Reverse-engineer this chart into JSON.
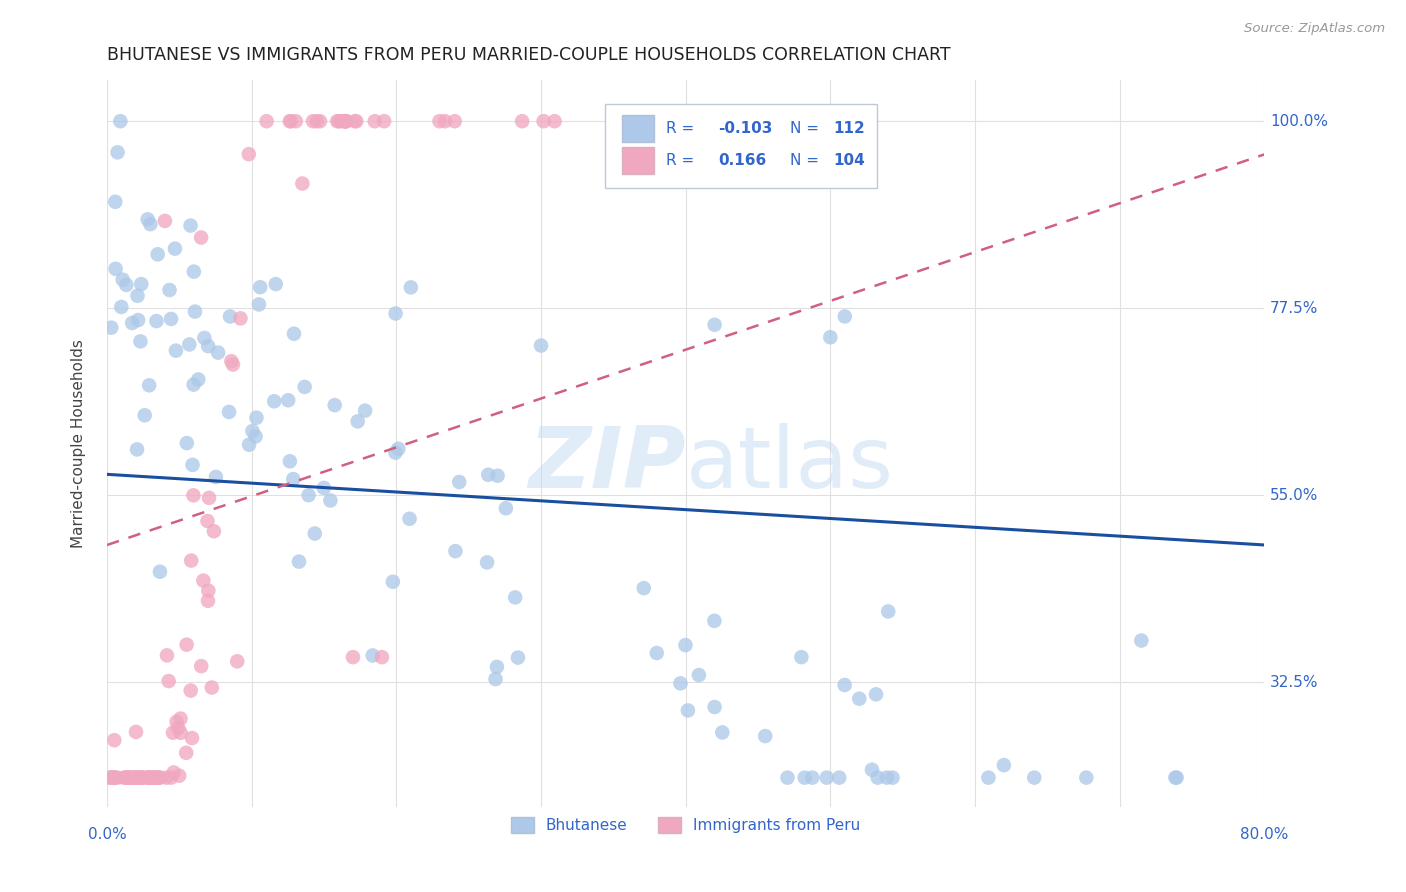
{
  "title": "BHUTANESE VS IMMIGRANTS FROM PERU MARRIED-COUPLE HOUSEHOLDS CORRELATION CHART",
  "source_text": "Source: ZipAtlas.com",
  "ylabel": "Married-couple Households",
  "ytick_labels": [
    "100.0%",
    "77.5%",
    "55.0%",
    "32.5%"
  ],
  "ytick_values": [
    1.0,
    0.775,
    0.55,
    0.325
  ],
  "xmin": 0.0,
  "xmax": 0.8,
  "ymin": 0.175,
  "ymax": 1.05,
  "bhutanese_color": "#adc8e8",
  "peru_color": "#f0a8c0",
  "bhutanese_line_color": "#1a4fa0",
  "peru_line_color": "#d06080",
  "legend_label_bhutanese": "Bhutanese",
  "legend_label_peru": "Immigrants from Peru",
  "R_bhutanese": -0.103,
  "N_bhutanese": 112,
  "R_peru": 0.166,
  "N_peru": 104,
  "watermark_text": "ZIPAtlas",
  "background_color": "#ffffff",
  "grid_color": "#e0e0e0",
  "legend_text_color": "#3366cc",
  "blue_line_y0": 0.575,
  "blue_line_y1": 0.49,
  "pink_line_y0": 0.49,
  "pink_line_y1": 0.96
}
